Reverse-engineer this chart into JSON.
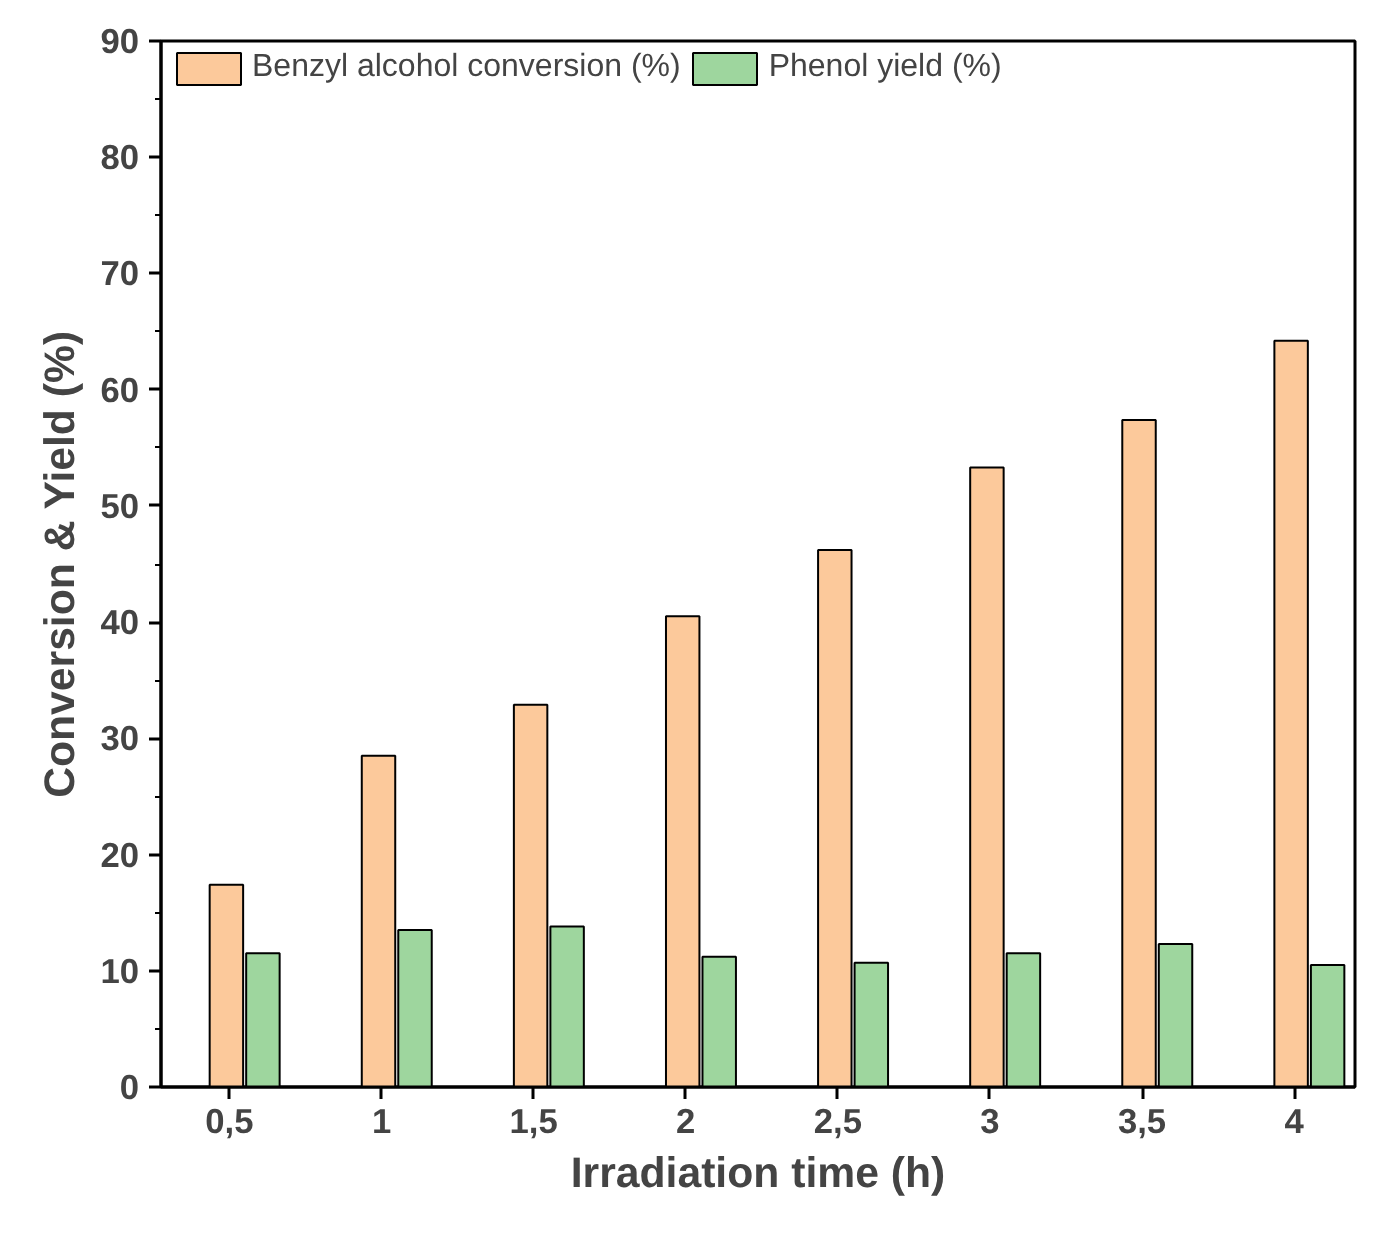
{
  "chart_data": {
    "type": "bar",
    "xlabel": "Irradiation time (h)",
    "ylabel": "Conversion & Yield (%)",
    "categories": [
      "0,5",
      "1",
      "1,5",
      "2",
      "2,5",
      "3",
      "3,5",
      "4"
    ],
    "series": [
      {
        "name": "Benzyl alcohol conversion (%)",
        "color": "#fcc99b",
        "values": [
          17.4,
          28.5,
          32.9,
          40.5,
          46.2,
          53.3,
          57.4,
          64.2
        ]
      },
      {
        "name": "Phenol yield (%)",
        "color": "#9ed69e",
        "values": [
          11.5,
          13.5,
          13.8,
          11.2,
          10.7,
          11.5,
          12.3,
          10.5
        ]
      }
    ],
    "ylim": [
      0,
      90
    ],
    "yticks": [
      0,
      10,
      20,
      30,
      40,
      50,
      60,
      70,
      80,
      90
    ],
    "grid": false,
    "legend": "top left"
  }
}
